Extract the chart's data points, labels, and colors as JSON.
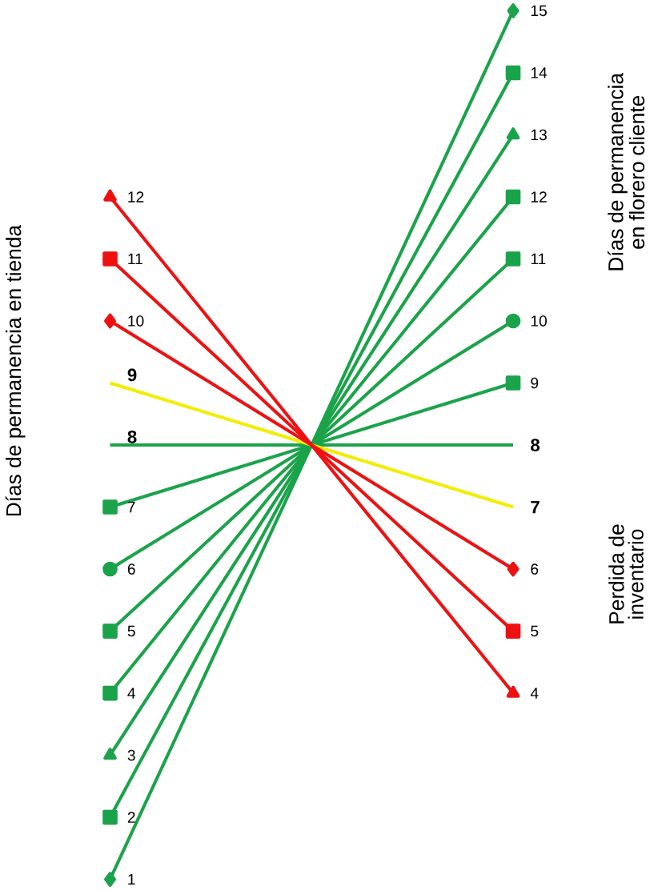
{
  "chart_data": {
    "type": "line",
    "ylabel": "Días de permanencia en tienda",
    "y2label": "Días de permanencia en florero cliente",
    "annotations": [
      "Perdida de inventario"
    ],
    "categories": [
      null,
      null
    ],
    "data_labels": true,
    "series": [
      {
        "color": "#1aa34a",
        "marker": "diamond",
        "values": [
          1,
          15
        ]
      },
      {
        "color": "#1aa34a",
        "marker": "square",
        "values": [
          2,
          14
        ]
      },
      {
        "color": "#1aa34a",
        "marker": "triangle",
        "values": [
          3,
          13
        ]
      },
      {
        "color": "#1aa34a",
        "marker": "square",
        "values": [
          4,
          12
        ]
      },
      {
        "color": "#1aa34a",
        "marker": "square",
        "values": [
          5,
          11
        ]
      },
      {
        "color": "#1aa34a",
        "marker": "circle",
        "values": [
          6,
          10
        ]
      },
      {
        "color": "#1aa34a",
        "marker": "square",
        "values": [
          7,
          9
        ]
      },
      {
        "color": "#1aa34a",
        "marker": "none",
        "values": [
          8,
          8
        ]
      },
      {
        "color": "#f2ee00",
        "marker": "none",
        "values": [
          9,
          7
        ]
      },
      {
        "color": "#ee1111",
        "marker": "diamond",
        "values": [
          10,
          6
        ]
      },
      {
        "color": "#ee1111",
        "marker": "square",
        "values": [
          11,
          5
        ]
      },
      {
        "color": "#ee1111",
        "marker": "triangle",
        "values": [
          12,
          4
        ]
      }
    ]
  }
}
